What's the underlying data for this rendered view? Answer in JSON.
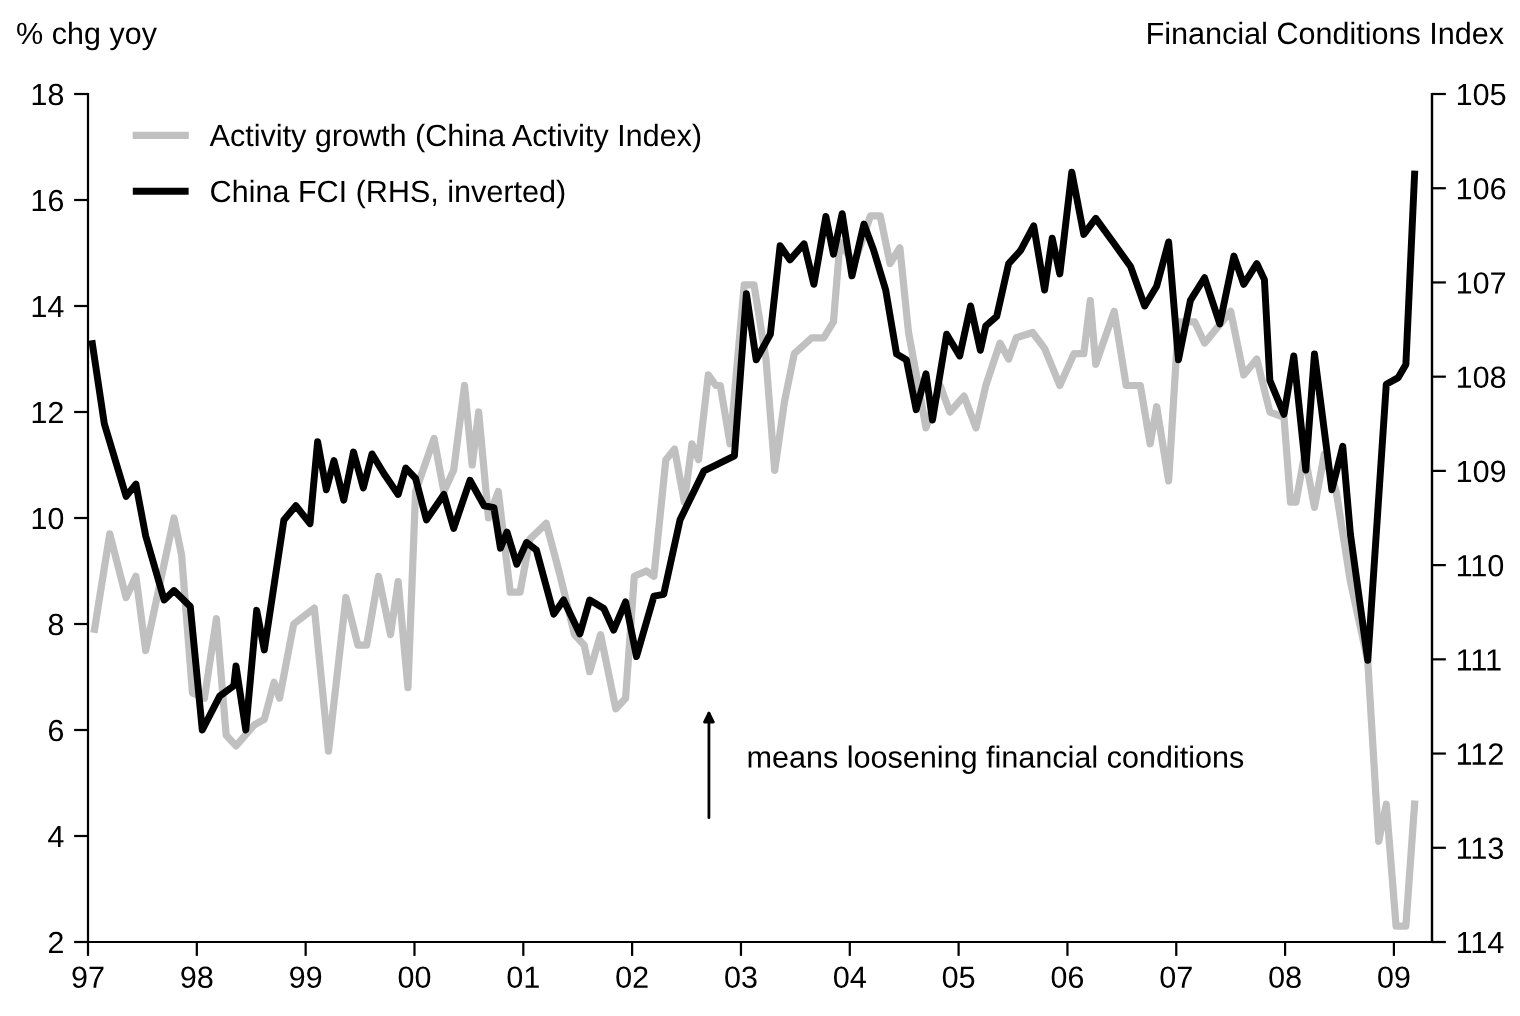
{
  "chart_data": {
    "type": "line",
    "ylabel": "% chg yoy",
    "y2label": "Financial Conditions Index",
    "annotations": [
      "means loosening financial conditions"
    ],
    "xlim": [
      1997,
      2009.35
    ],
    "xticks": [
      {
        "value": 1997,
        "label": "97"
      },
      {
        "value": 1998,
        "label": "98"
      },
      {
        "value": 1999,
        "label": "99"
      },
      {
        "value": 2000,
        "label": "00"
      },
      {
        "value": 2001,
        "label": "01"
      },
      {
        "value": 2002,
        "label": "02"
      },
      {
        "value": 2003,
        "label": "03"
      },
      {
        "value": 2004,
        "label": "04"
      },
      {
        "value": 2005,
        "label": "05"
      },
      {
        "value": 2006,
        "label": "06"
      },
      {
        "value": 2007,
        "label": "07"
      },
      {
        "value": 2008,
        "label": "08"
      },
      {
        "value": 2009,
        "label": "09"
      }
    ],
    "ylim": [
      2,
      18
    ],
    "yticks": [
      2,
      4,
      6,
      8,
      10,
      12,
      14,
      16,
      18
    ],
    "y2lim": [
      114,
      105
    ],
    "y2ticks": [
      105,
      106,
      107,
      108,
      109,
      110,
      111,
      112,
      113,
      114
    ],
    "legend": "top left",
    "grid": false,
    "marker": "none",
    "line_style": "solid",
    "series": [
      {
        "name": "Activity growth (China Activity Index)",
        "color": "#c0c0c0",
        "x": [
          1997.06,
          1997.2,
          1997.35,
          1997.44,
          1997.53,
          1997.79,
          1997.86,
          1997.96,
          1998.07,
          1998.18,
          1998.27,
          1998.36,
          1998.53,
          1998.62,
          1998.71,
          1998.76,
          1998.89,
          1999.08,
          1999.21,
          1999.37,
          1999.48,
          1999.56,
          1999.67,
          1999.78,
          1999.85,
          1999.94,
          2000.01,
          2000.18,
          2000.27,
          2000.36,
          2000.46,
          2000.53,
          2000.59,
          2000.68,
          2000.77,
          2000.88,
          2000.97,
          2001.06,
          2001.21,
          2001.34,
          2001.47,
          2001.56,
          2001.61,
          2001.71,
          2001.85,
          2001.94,
          2002.02,
          2002.13,
          2002.2,
          2002.31,
          2002.39,
          2002.48,
          2002.55,
          2002.61,
          2002.7,
          2002.77,
          2002.81,
          2002.9,
          2003.03,
          2003.12,
          2003.23,
          2003.31,
          2003.4,
          2003.49,
          2003.65,
          2003.76,
          2003.85,
          2003.91,
          2004.04,
          2004.19,
          2004.28,
          2004.37,
          2004.46,
          2004.54,
          2004.63,
          2004.7,
          2004.83,
          2004.92,
          2005.05,
          2005.16,
          2005.25,
          2005.38,
          2005.46,
          2005.53,
          2005.68,
          2005.79,
          2005.93,
          2006.06,
          2006.15,
          2006.21,
          2006.26,
          2006.43,
          2006.54,
          2006.67,
          2006.76,
          2006.82,
          2006.93,
          2007.02,
          2007.17,
          2007.26,
          2007.5,
          2007.62,
          2007.74,
          2007.86,
          2007.99,
          2008.05,
          2008.1,
          2008.18,
          2008.27,
          2008.36,
          2008.47,
          2008.6,
          2008.76,
          2008.86,
          2008.93,
          2009.02,
          2009.11,
          2009.19
        ],
        "values": [
          7.9,
          9.7,
          8.5,
          8.9,
          7.5,
          10.0,
          9.3,
          6.7,
          6.6,
          8.1,
          5.9,
          5.7,
          6.1,
          6.2,
          6.9,
          6.6,
          8.0,
          8.3,
          5.6,
          8.5,
          7.6,
          7.6,
          8.9,
          7.8,
          8.8,
          6.8,
          10.5,
          11.5,
          10.5,
          10.9,
          12.5,
          11.0,
          12.0,
          10.0,
          10.5,
          8.6,
          8.6,
          9.6,
          9.9,
          8.9,
          7.8,
          7.6,
          7.1,
          7.8,
          6.4,
          6.6,
          8.9,
          9.0,
          8.9,
          11.1,
          11.3,
          10.3,
          11.4,
          11.1,
          12.7,
          12.5,
          12.5,
          11.4,
          14.4,
          14.4,
          13.0,
          10.9,
          12.2,
          13.1,
          13.4,
          13.4,
          13.7,
          15.2,
          14.8,
          15.7,
          15.7,
          14.8,
          15.1,
          13.5,
          12.5,
          11.7,
          12.5,
          12.0,
          12.3,
          11.7,
          12.5,
          13.3,
          13.0,
          13.4,
          13.5,
          13.2,
          12.5,
          13.1,
          13.1,
          14.1,
          12.9,
          13.9,
          12.5,
          12.5,
          11.4,
          12.1,
          10.7,
          13.7,
          13.7,
          13.3,
          13.9,
          12.7,
          13.0,
          12.0,
          11.9,
          10.3,
          10.3,
          11.2,
          10.2,
          11.2,
          10.5,
          8.8,
          7.3,
          3.9,
          4.6,
          2.3,
          2.3,
          4.6
        ]
      },
      {
        "name": "China FCI (RHS, inverted)",
        "color": "#000000",
        "axis": "y2",
        "x": [
          1997.04,
          1997.15,
          1997.35,
          1997.44,
          1997.53,
          1997.7,
          1997.79,
          1997.94,
          1998.05,
          1998.21,
          1998.34,
          1998.36,
          1998.45,
          1998.55,
          1998.62,
          1998.8,
          1998.91,
          1999.04,
          1999.11,
          1999.19,
          1999.26,
          1999.35,
          1999.44,
          1999.53,
          1999.61,
          1999.72,
          1999.85,
          1999.92,
          2000.01,
          2000.11,
          2000.27,
          2000.36,
          2000.51,
          2000.64,
          2000.73,
          2000.79,
          2000.85,
          2000.94,
          2001.03,
          2001.12,
          2001.28,
          2001.37,
          2001.52,
          2001.61,
          2001.74,
          2001.83,
          2001.94,
          2002.04,
          2002.2,
          2002.29,
          2002.44,
          2002.66,
          2002.75,
          2002.94,
          2003.05,
          2003.14,
          2003.27,
          2003.36,
          2003.45,
          2003.58,
          2003.67,
          2003.78,
          2003.85,
          2003.93,
          2004.02,
          2004.13,
          2004.22,
          2004.33,
          2004.43,
          2004.52,
          2004.61,
          2004.7,
          2004.76,
          2004.89,
          2005.01,
          2005.11,
          2005.2,
          2005.25,
          2005.35,
          2005.46,
          2005.57,
          2005.69,
          2005.79,
          2005.86,
          2005.93,
          2006.04,
          2006.15,
          2006.26,
          2006.43,
          2006.58,
          2006.71,
          2006.82,
          2006.93,
          2007.02,
          2007.13,
          2007.26,
          2007.4,
          2007.53,
          2007.62,
          2007.74,
          2007.81,
          2007.86,
          2007.99,
          2008.08,
          2008.19,
          2008.27,
          2008.43,
          2008.53,
          2008.6,
          2008.76,
          2008.93,
          2009.04,
          2009.11,
          2009.19
        ],
        "values": [
          107.65,
          108.5,
          109.27,
          109.14,
          109.69,
          110.37,
          110.27,
          110.44,
          111.75,
          111.39,
          111.28,
          111.07,
          111.75,
          110.48,
          110.9,
          109.52,
          109.37,
          109.56,
          108.69,
          109.2,
          108.89,
          109.31,
          108.8,
          109.18,
          108.82,
          109.03,
          109.25,
          108.97,
          109.08,
          109.52,
          109.25,
          109.61,
          109.1,
          109.37,
          109.39,
          109.82,
          109.65,
          109.99,
          109.76,
          109.84,
          110.52,
          110.37,
          110.73,
          110.37,
          110.46,
          110.69,
          110.39,
          110.97,
          110.33,
          110.31,
          109.52,
          109.0,
          108.95,
          108.84,
          107.12,
          107.82,
          107.55,
          106.61,
          106.76,
          106.59,
          107.02,
          106.3,
          106.7,
          106.27,
          106.93,
          106.38,
          106.66,
          107.08,
          107.76,
          107.82,
          108.35,
          107.97,
          108.46,
          107.55,
          107.78,
          107.25,
          107.72,
          107.46,
          107.36,
          106.8,
          106.66,
          106.4,
          107.08,
          106.53,
          106.91,
          105.83,
          106.49,
          106.32,
          106.59,
          106.83,
          107.25,
          107.04,
          106.57,
          107.82,
          107.19,
          106.95,
          107.44,
          106.72,
          107.02,
          106.8,
          106.97,
          108.04,
          108.4,
          107.78,
          108.99,
          107.76,
          109.2,
          108.74,
          109.67,
          111.01,
          108.08,
          108.01,
          107.87,
          105.85
        ]
      }
    ]
  }
}
